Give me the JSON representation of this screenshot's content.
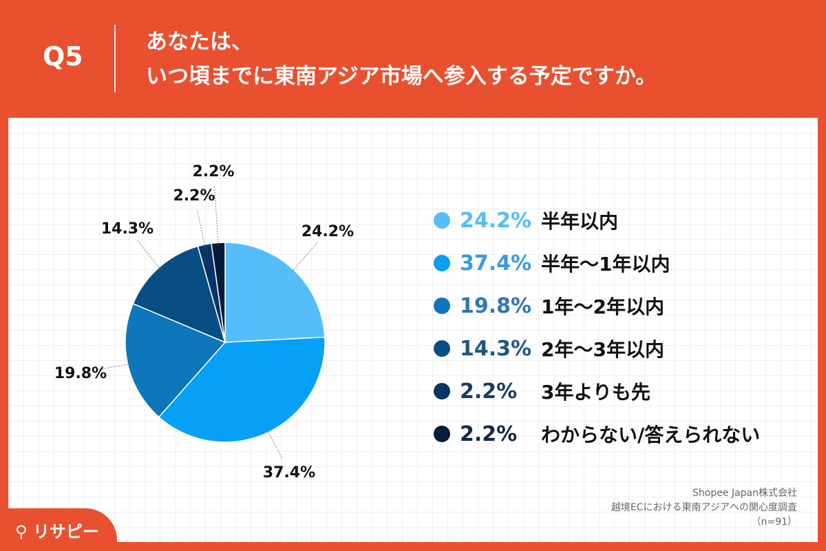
{
  "header": {
    "question_no": "Q5",
    "title_line1": "あなたは、",
    "title_line2": "いつ頃までに東南アジア市場へ参入する予定ですか。"
  },
  "chart_data": {
    "type": "pie",
    "slices": [
      {
        "label": "半年以内",
        "value": 24.2,
        "value_label": "24.2%",
        "color": "#56BDFB"
      },
      {
        "label": "半年〜1年以内",
        "value": 37.4,
        "value_label": "37.4%",
        "color": "#07A0F7"
      },
      {
        "label": "1年〜2年以内",
        "value": 19.8,
        "value_label": "19.8%",
        "color": "#0E76BA"
      },
      {
        "label": "2年〜3年以内",
        "value": 14.3,
        "value_label": "14.3%",
        "color": "#084E83"
      },
      {
        "label": "3年よりも先",
        "value": 2.2,
        "value_label": "2.2%",
        "color": "#0A3465"
      },
      {
        "label": "わからない/答えられない",
        "value": 2.2,
        "value_label": "2.2%",
        "color": "#051B3A"
      }
    ],
    "legend_placement": "right",
    "start_angle": "12 o'clock",
    "direction": "clockwise"
  },
  "legend_pct_colors": [
    "#56BDFB",
    "#3A9BE0",
    "#2D76B8",
    "#1F5587",
    "#1A3A6A",
    "#14264A"
  ],
  "source": {
    "line1": "Shopee Japan株式会社",
    "line2": "越境ECにおける東南アジアへの関心度調査",
    "line3": "（n=91）"
  },
  "logo": {
    "text": "リサピー"
  }
}
